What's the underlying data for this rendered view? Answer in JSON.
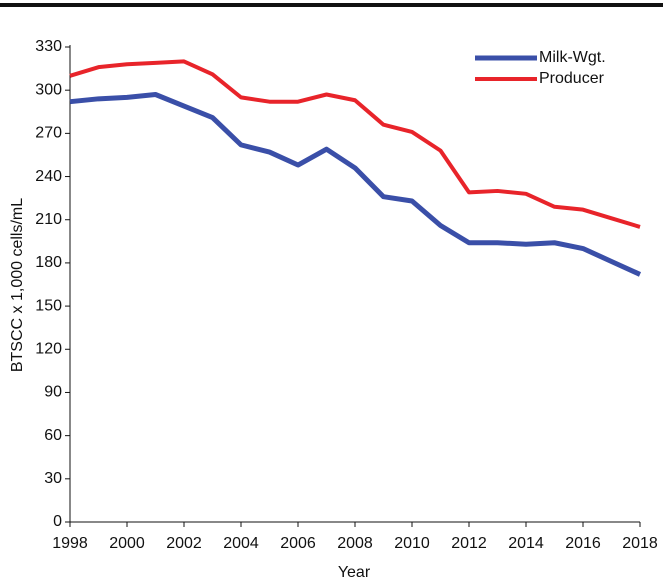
{
  "chart_data": {
    "type": "line",
    "x_label": "Year",
    "y_label": "BTSCC x 1,000 cells/mL",
    "x": [
      1998,
      1999,
      2000,
      2001,
      2002,
      2003,
      2004,
      2005,
      2006,
      2007,
      2008,
      2009,
      2010,
      2011,
      2012,
      2013,
      2014,
      2015,
      2016,
      2017,
      2018
    ],
    "series": [
      {
        "name": "Milk-Wgt.",
        "color": "#3a4fa8",
        "width": 5,
        "values": [
          292,
          294,
          295,
          297,
          289,
          281,
          262,
          257,
          248,
          259,
          246,
          226,
          223,
          206,
          194,
          194,
          193,
          194,
          190,
          181,
          172
        ]
      },
      {
        "name": "Producer",
        "color": "#e8242a",
        "width": 4,
        "values": [
          310,
          316,
          318,
          319,
          320,
          311,
          295,
          292,
          292,
          297,
          293,
          276,
          271,
          258,
          229,
          230,
          228,
          219,
          217,
          211,
          205
        ]
      }
    ],
    "xlim": [
      1998,
      2018
    ],
    "xticks": [
      1998,
      2000,
      2002,
      2004,
      2006,
      2008,
      2010,
      2012,
      2014,
      2016,
      2018
    ],
    "ylim": [
      0,
      330
    ],
    "yticks": [
      0,
      30,
      60,
      90,
      120,
      150,
      180,
      210,
      240,
      270,
      300,
      330
    ],
    "legend": "upper right",
    "grid": false
  }
}
